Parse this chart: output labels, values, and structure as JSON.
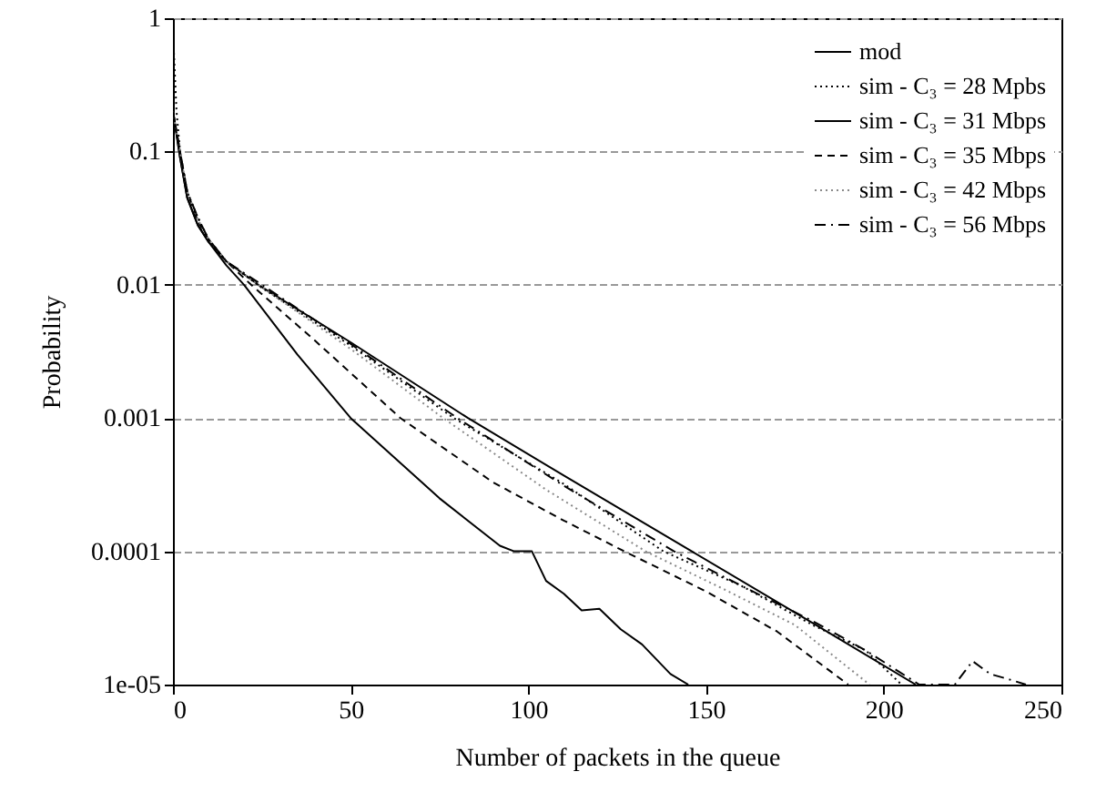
{
  "chart_data": {
    "type": "line",
    "xlabel": "Number of packets in the queue",
    "ylabel": "Probability",
    "xlim": [
      0,
      250
    ],
    "xticks": [
      0,
      50,
      100,
      150,
      200,
      250
    ],
    "ylim": [
      1e-05,
      1
    ],
    "yticks": [
      {
        "value": 1e-05,
        "label": "1e-05"
      },
      0.0001,
      0.001,
      0.01,
      0.1,
      1
    ],
    "log": "y",
    "grid": "y",
    "legend": "top right",
    "series": [
      {
        "name": "mod",
        "color": "#000000",
        "line_style": "solid",
        "x": [
          0,
          2,
          4,
          7,
          10,
          15,
          24,
          50,
          83,
          110,
          146,
          180,
          209
        ],
        "values": [
          0.2,
          0.09,
          0.045,
          0.028,
          0.021,
          0.015,
          0.01,
          0.0037,
          0.001,
          0.00037,
          0.0001,
          2.9e-05,
          1e-05
        ]
      },
      {
        "name": "sim - C₃ = 28 Mpbs",
        "color": "#000000",
        "line_style": "dotted",
        "x": [
          0,
          1,
          2,
          4,
          7,
          10,
          15,
          25,
          50,
          79,
          110,
          138,
          160,
          180,
          195,
          205
        ],
        "values": [
          0.8,
          0.2,
          0.1,
          0.05,
          0.032,
          0.022,
          0.015,
          0.0095,
          0.0035,
          0.001,
          0.00032,
          0.0001,
          5.5e-05,
          2.8e-05,
          1.8e-05,
          1e-05
        ]
      },
      {
        "name": "sim - C₃ = 31 Mbps",
        "color": "#000000",
        "line_style": "solid",
        "x": [
          0,
          2,
          4,
          7,
          10,
          15,
          20,
          35,
          50,
          75,
          92,
          96,
          101,
          105,
          110,
          115,
          120,
          126,
          132,
          140,
          145
        ],
        "values": [
          0.2,
          0.09,
          0.045,
          0.028,
          0.021,
          0.014,
          0.01,
          0.003,
          0.001,
          0.00025,
          0.00011,
          0.0001,
          0.0001,
          6e-05,
          4.8e-05,
          3.6e-05,
          3.7e-05,
          2.6e-05,
          2e-05,
          1.2e-05,
          1e-05
        ]
      },
      {
        "name": "sim - C₃ = 35 Mbps",
        "color": "#000000",
        "line_style": "dashed",
        "x": [
          0,
          2,
          4,
          7,
          10,
          15,
          22,
          40,
          64,
          90,
          110,
          127,
          150,
          170,
          190
        ],
        "values": [
          0.2,
          0.1,
          0.05,
          0.03,
          0.022,
          0.015,
          0.01,
          0.0038,
          0.001,
          0.00033,
          0.00017,
          0.0001,
          5e-05,
          2.5e-05,
          1e-05
        ]
      },
      {
        "name": "sim - C₃ = 42 Mbps",
        "color": "#888888",
        "line_style": "dotted",
        "x": [
          0,
          2,
          4,
          7,
          10,
          15,
          24,
          50,
          76,
          105,
          133,
          155,
          175,
          196
        ],
        "values": [
          0.2,
          0.1,
          0.05,
          0.031,
          0.022,
          0.015,
          0.01,
          0.0033,
          0.001,
          0.00029,
          0.0001,
          5.2e-05,
          2.8e-05,
          1e-05
        ]
      },
      {
        "name": "sim - C₃ = 56 Mbps",
        "color": "#000000",
        "line_style": "dashdot",
        "x": [
          0,
          2,
          4,
          7,
          10,
          15,
          25,
          50,
          80,
          110,
          141,
          160,
          180,
          195,
          210,
          220,
          225,
          230,
          235,
          240
        ],
        "values": [
          0.2,
          0.1,
          0.05,
          0.032,
          0.022,
          0.015,
          0.01,
          0.0036,
          0.001,
          0.00031,
          0.0001,
          5.5e-05,
          3e-05,
          1.8e-05,
          1e-05,
          1e-05,
          1.5e-05,
          1.2e-05,
          1.1e-05,
          1e-05
        ]
      }
    ]
  }
}
